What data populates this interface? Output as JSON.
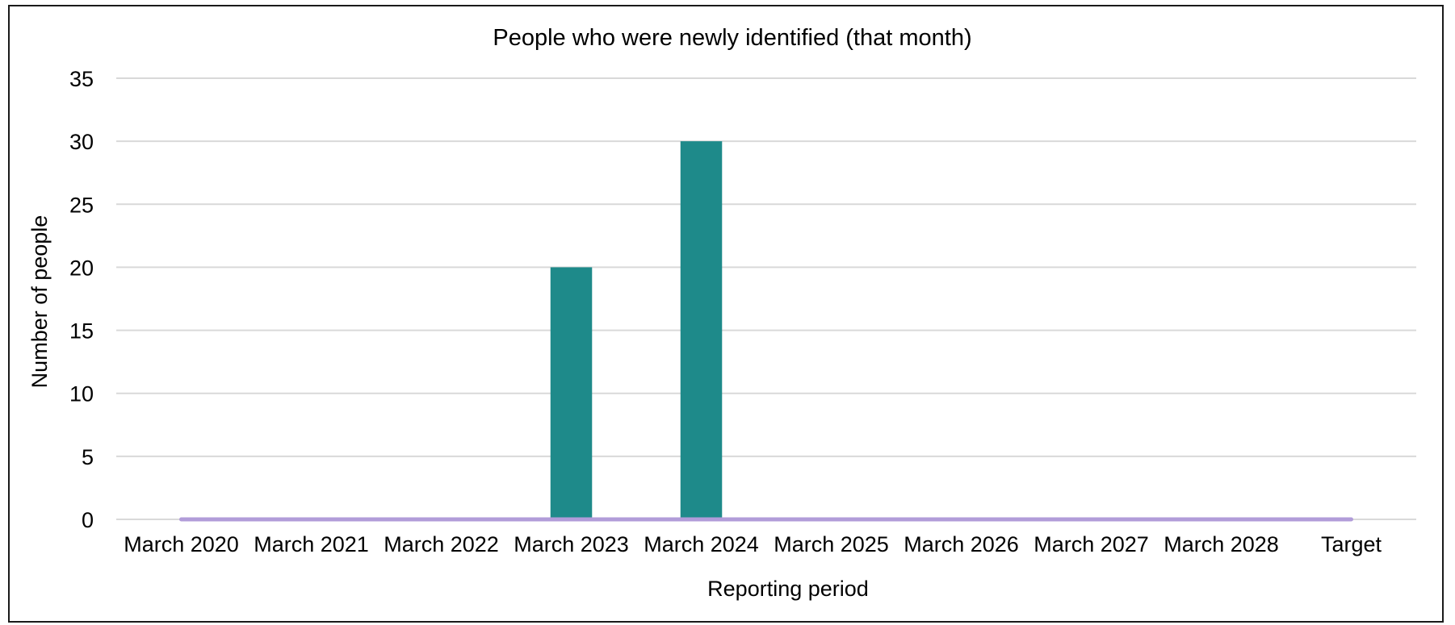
{
  "chart_data": {
    "type": "bar",
    "title": "People who were newly identified (that month)",
    "xlabel": "Reporting period",
    "ylabel": "Number of people",
    "categories": [
      "March 2020",
      "March 2021",
      "March 2022",
      "March 2023",
      "March 2024",
      "March 2025",
      "March 2026",
      "March 2027",
      "March 2028",
      "Target"
    ],
    "series": [
      {
        "type": "bar",
        "values": [
          null,
          null,
          null,
          20,
          30,
          null,
          null,
          null,
          null,
          null
        ],
        "color": "#1e8a8a"
      },
      {
        "type": "line",
        "values": [
          0,
          0,
          0,
          0,
          0,
          0,
          0,
          0,
          0,
          0
        ],
        "color": "#b19cd9"
      }
    ],
    "ylim": [
      0,
      35
    ],
    "yticks": [
      0,
      5,
      10,
      15,
      20,
      25,
      30,
      35
    ],
    "grid": true,
    "legend": "none"
  }
}
